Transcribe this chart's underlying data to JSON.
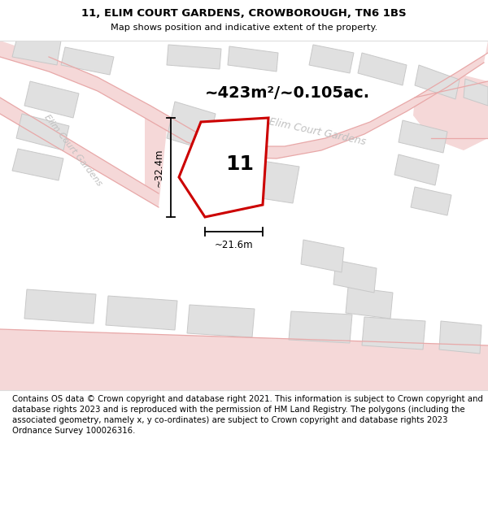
{
  "title_line1": "11, ELIM COURT GARDENS, CROWBOROUGH, TN6 1BS",
  "title_line2": "Map shows position and indicative extent of the property.",
  "area_text": "~423m²/~0.105ac.",
  "street_label_right": "Elim Court Gardens",
  "street_label_left": "Elim Court Gardens",
  "property_number": "11",
  "dim_width": "~21.6m",
  "dim_height": "~32.4m",
  "footer": "Contains OS data © Crown copyright and database right 2021. This information is subject to Crown copyright and database rights 2023 and is reproduced with the permission of HM Land Registry. The polygons (including the associated geometry, namely x, y co-ordinates) are subject to Crown copyright and database rights 2023 Ordnance Survey 100026316.",
  "road_fill": "#f5d8d8",
  "road_edge": "#e8a8a8",
  "building_fill": "#e0e0e0",
  "building_edge": "#c8c8c8",
  "plot_fill": "#ffffff",
  "plot_edge": "#cc0000",
  "street_color": "#c0c0c0",
  "map_bg": "#f8f8f8",
  "white": "#ffffff"
}
